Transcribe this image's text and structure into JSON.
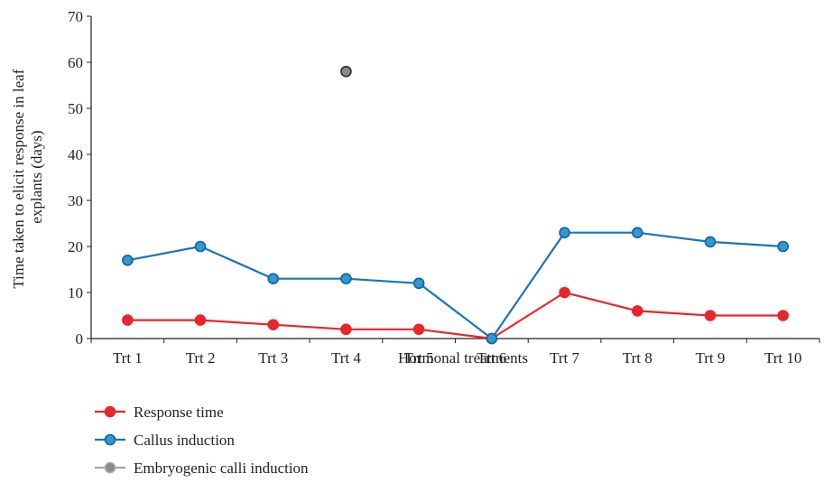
{
  "chart_data": {
    "type": "line",
    "title": "",
    "xlabel": "Hormonal treatments",
    "ylabel_lines": [
      "Time taken to elicit response in leaf",
      "explants (days)"
    ],
    "categories": [
      "Trt 1",
      "Trt 2",
      "Trt 3",
      "Trt 4",
      "Trt 5",
      "Trt 6",
      "Trt 7",
      "Trt 8",
      "Trt 9",
      "Trt 10"
    ],
    "ylim": [
      0,
      70
    ],
    "yticks": [
      0,
      10,
      20,
      30,
      40,
      50,
      60,
      70
    ],
    "grid": false,
    "legend_position": "bottom-left",
    "series": [
      {
        "name": "Response time",
        "color": "#e8262b",
        "marker_fill": "#e8262b",
        "marker_stroke": "#e8262b",
        "values": [
          4,
          4,
          3,
          2,
          2,
          0,
          10,
          6,
          5,
          5
        ]
      },
      {
        "name": "Callus induction",
        "color": "#1a75b9",
        "marker_fill": "#2a9bd8",
        "marker_stroke": "#1a5f95",
        "values": [
          17,
          20,
          13,
          13,
          12,
          0,
          23,
          23,
          21,
          20
        ]
      },
      {
        "name": "Embryogenic calli induction",
        "color": "#a7a9ac",
        "marker_fill": "#8a8a8a",
        "marker_stroke": "#2b2b2b",
        "values": [
          null,
          null,
          null,
          58,
          null,
          null,
          null,
          null,
          null,
          null
        ]
      }
    ]
  }
}
